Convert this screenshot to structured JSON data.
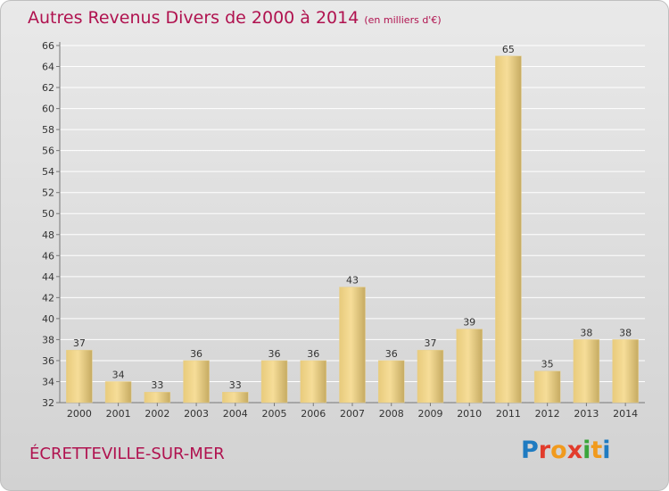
{
  "header": {
    "title": "Autres Revenus Divers de 2000 à 2014",
    "unit": "(en milliers d'€)"
  },
  "footer": {
    "commune": "ÉCRETTEVILLE-SUR-MER",
    "logo_text": "Proxiti"
  },
  "colors": {
    "title": "#b0124f",
    "bar_light": "#f6dd98",
    "bar_dark": "#c6ab62",
    "grid": "#ffffff"
  },
  "chart_data": {
    "type": "bar",
    "categories": [
      "2000",
      "2001",
      "2002",
      "2003",
      "2004",
      "2005",
      "2006",
      "2007",
      "2008",
      "2009",
      "2010",
      "2011",
      "2012",
      "2013",
      "2014"
    ],
    "values": [
      37,
      34,
      33,
      36,
      33,
      36,
      36,
      43,
      36,
      37,
      39,
      65,
      35,
      38,
      38
    ],
    "ylim": [
      32,
      66
    ],
    "ytick_step": 2,
    "grid": true,
    "xlabel": "",
    "ylabel": ""
  }
}
